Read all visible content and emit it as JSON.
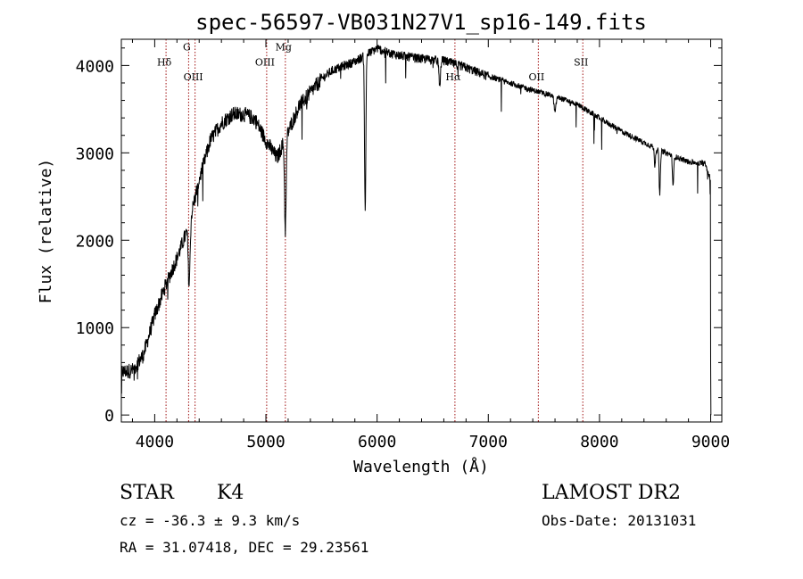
{
  "chart_data": {
    "type": "line",
    "title": "spec-56597-VB031N27V1_sp16-149.fits",
    "xlabel": "Wavelength (Å)",
    "ylabel": "Flux (relative)",
    "xlim": [
      3700,
      9100
    ],
    "ylim": [
      -80,
      4300
    ],
    "xticks": [
      4000,
      5000,
      6000,
      7000,
      8000,
      9000
    ],
    "xtick_labels": [
      "4000",
      "5000",
      "6000",
      "7000",
      "8000",
      "9000"
    ],
    "yticks": [
      0,
      1000,
      2000,
      3000,
      4000
    ],
    "ytick_labels": [
      "0",
      "1000",
      "2000",
      "3000",
      "4000"
    ],
    "grid": false,
    "line_color": "#000000",
    "marker_color": "#a01010",
    "continuum": [
      [
        3700,
        500
      ],
      [
        3800,
        520
      ],
      [
        3900,
        700
      ],
      [
        4000,
        1150
      ],
      [
        4100,
        1500
      ],
      [
        4200,
        1800
      ],
      [
        4300,
        2150
      ],
      [
        4400,
        2700
      ],
      [
        4500,
        3150
      ],
      [
        4600,
        3350
      ],
      [
        4700,
        3450
      ],
      [
        4800,
        3450
      ],
      [
        4900,
        3400
      ],
      [
        5000,
        3150
      ],
      [
        5100,
        2950
      ],
      [
        5200,
        3250
      ],
      [
        5300,
        3550
      ],
      [
        5400,
        3700
      ],
      [
        5500,
        3850
      ],
      [
        5600,
        3950
      ],
      [
        5700,
        4000
      ],
      [
        5800,
        4050
      ],
      [
        6000,
        4200
      ],
      [
        6100,
        4150
      ],
      [
        6200,
        4120
      ],
      [
        6400,
        4080
      ],
      [
        6600,
        4060
      ],
      [
        6800,
        3980
      ],
      [
        7000,
        3880
      ],
      [
        7200,
        3800
      ],
      [
        7400,
        3720
      ],
      [
        7600,
        3650
      ],
      [
        7800,
        3560
      ],
      [
        8000,
        3400
      ],
      [
        8200,
        3250
      ],
      [
        8400,
        3120
      ],
      [
        8600,
        3000
      ],
      [
        8800,
        2900
      ],
      [
        8950,
        2880
      ],
      [
        9000,
        2700
      ]
    ],
    "absorption_lines": [
      {
        "x": 4310,
        "depth": 700,
        "width": 12
      },
      {
        "x": 5175,
        "depth": 1050,
        "width": 10
      },
      {
        "x": 5893,
        "depth": 1800,
        "width": 8
      },
      {
        "x": 6563,
        "depth": 300,
        "width": 10
      },
      {
        "x": 7600,
        "depth": 180,
        "width": 12
      },
      {
        "x": 8498,
        "depth": 200,
        "width": 8
      },
      {
        "x": 8542,
        "depth": 500,
        "width": 8
      },
      {
        "x": 8662,
        "depth": 350,
        "width": 8
      }
    ],
    "noise_amplitude": 180,
    "line_markers": [
      {
        "label": "Hδ",
        "x": 4102,
        "label_y": 4000
      },
      {
        "label": "G",
        "x": 4305,
        "label_y": 4170
      },
      {
        "label": "OIII",
        "x": 4363,
        "label_y": 3830
      },
      {
        "label": "OIII",
        "x": 5007,
        "label_y": 4000
      },
      {
        "label": "Mg",
        "x": 5175,
        "label_y": 4170
      },
      {
        "label": "Hα",
        "x": 6700,
        "label_y": 3830
      },
      {
        "label": "OII",
        "x": 7450,
        "label_y": 3830
      },
      {
        "label": "SII",
        "x": 7850,
        "label_y": 4000
      }
    ]
  },
  "info": {
    "class_label": "STAR",
    "subclass": "K4",
    "survey": "LAMOST DR2",
    "cz": "cz = -36.3 ± 9.3 km/s",
    "obs_date": "Obs-Date: 20131031",
    "coords": "RA =  31.07418, DEC =  29.23561"
  }
}
